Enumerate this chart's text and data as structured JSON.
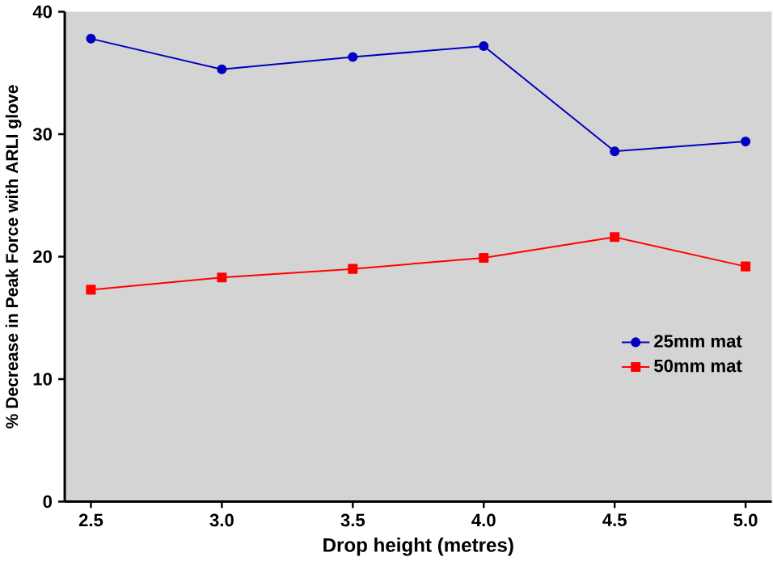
{
  "chart_data": {
    "type": "line",
    "xlabel": "Drop height (metres)",
    "ylabel": "% Decrease in Peak Force with ARLI glove",
    "x": [
      2.5,
      3.0,
      3.5,
      4.0,
      4.5,
      5.0
    ],
    "series": [
      {
        "name": "25mm mat",
        "color": "#0000c0",
        "marker": "circle",
        "values": [
          37.8,
          35.3,
          36.3,
          37.2,
          28.6,
          29.4
        ]
      },
      {
        "name": "50mm mat",
        "color": "#ff0000",
        "marker": "square",
        "values": [
          17.3,
          18.3,
          19.0,
          19.9,
          21.6,
          19.2
        ]
      }
    ],
    "xlim": [
      2.4,
      5.1
    ],
    "ylim": [
      0,
      40
    ],
    "xticks": [
      {
        "value": 2.5,
        "label": "2.5"
      },
      {
        "value": 3.0,
        "label": "3.0"
      },
      {
        "value": 3.5,
        "label": "3.5"
      },
      {
        "value": 4.0,
        "label": "4.0"
      },
      {
        "value": 4.5,
        "label": "4.5"
      },
      {
        "value": 5.0,
        "label": "5.0"
      }
    ],
    "yticks": [
      0,
      10,
      20,
      30,
      40
    ],
    "grid": false,
    "legend": "right"
  }
}
